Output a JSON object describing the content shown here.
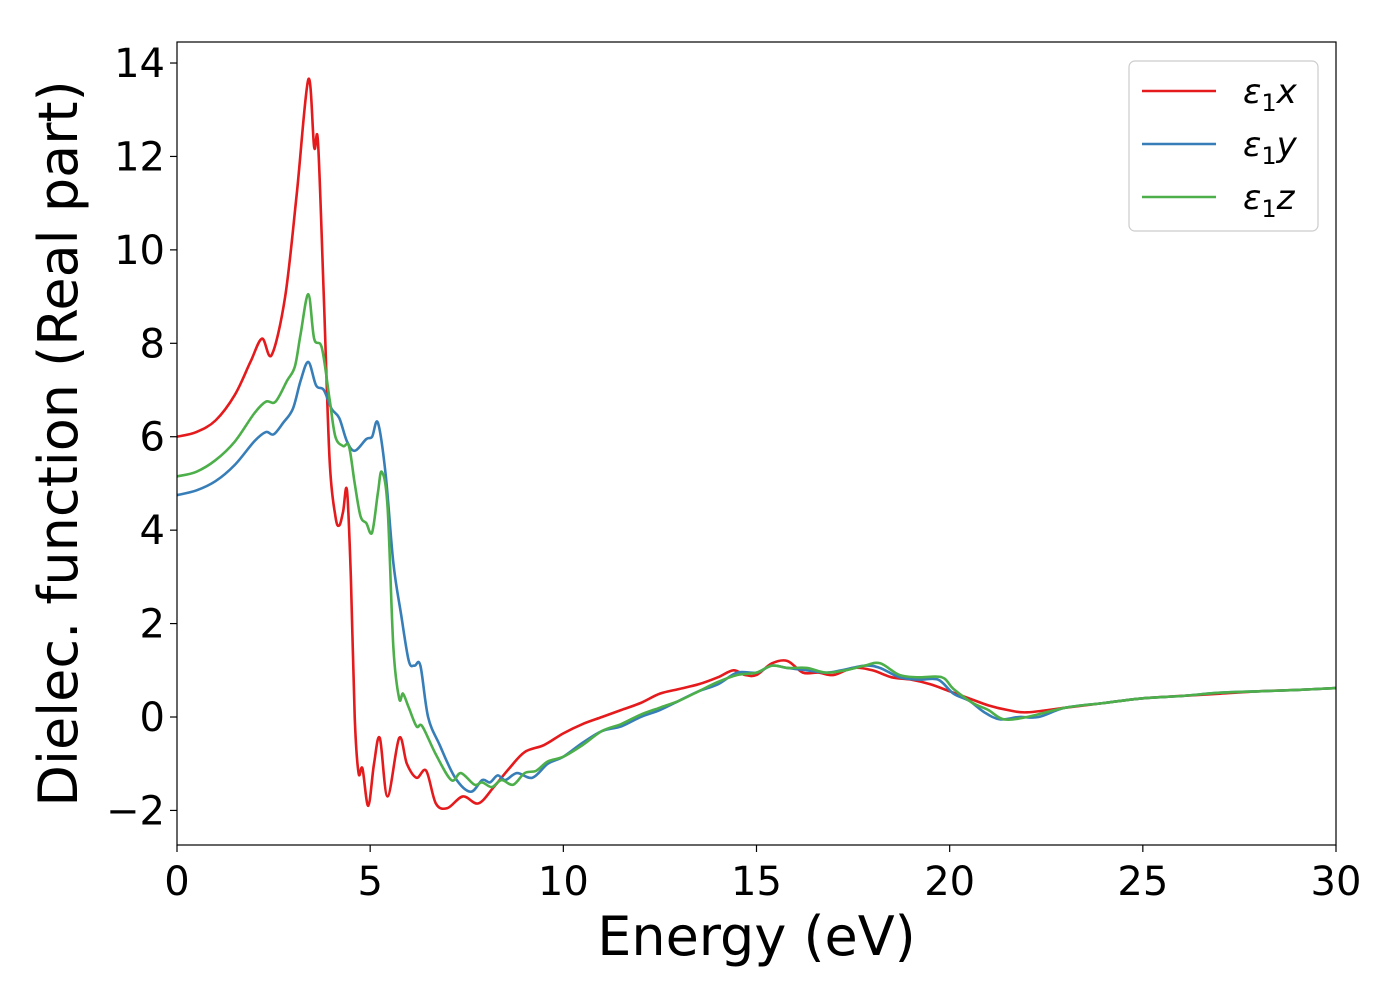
{
  "chart_data": {
    "type": "line",
    "title": "",
    "xlabel": "Energy (eV)",
    "ylabel": "Dielec. function (Real part)",
    "xlim": [
      0,
      30
    ],
    "ylim": [
      -2.74,
      14.45
    ],
    "xticks": [
      0,
      5,
      10,
      15,
      20,
      25,
      30
    ],
    "yticks": [
      -2,
      0,
      2,
      4,
      6,
      8,
      10,
      12,
      14
    ],
    "ytick_labels": [
      "−2",
      "0",
      "2",
      "4",
      "6",
      "8",
      "10",
      "12",
      "14"
    ],
    "grid": false,
    "legend_position": "top-right",
    "series": [
      {
        "name": "ε1x",
        "label_base": "ε",
        "label_sub": "1",
        "label_tail": "x",
        "color": "#e41a1c",
        "x": [
          0,
          0.5,
          1,
          1.5,
          1.9,
          2.2,
          2.45,
          2.8,
          3.1,
          3.4,
          3.55,
          3.65,
          3.8,
          3.95,
          4.1,
          4.2,
          4.3,
          4.4,
          4.5,
          4.6,
          4.7,
          4.8,
          4.95,
          5.1,
          5.25,
          5.45,
          5.75,
          5.95,
          6.2,
          6.45,
          6.7,
          7,
          7.4,
          7.8,
          8.2,
          8.6,
          9,
          9.5,
          10,
          10.5,
          11,
          11.5,
          12,
          12.5,
          13,
          13.5,
          14,
          14.4,
          14.7,
          15,
          15.4,
          15.8,
          16.2,
          16.6,
          17,
          17.5,
          18,
          18.5,
          19,
          19.5,
          20,
          20.5,
          21,
          21.5,
          22,
          23,
          24,
          25,
          26,
          27,
          28,
          29,
          30
        ],
        "y": [
          6.0,
          6.1,
          6.35,
          6.9,
          7.6,
          8.1,
          7.75,
          9.0,
          11.2,
          13.65,
          12.2,
          12.3,
          9.0,
          5.5,
          4.3,
          4.1,
          4.4,
          4.85,
          3.0,
          0.0,
          -1.2,
          -1.1,
          -1.9,
          -1.0,
          -0.45,
          -1.7,
          -0.45,
          -1.0,
          -1.3,
          -1.15,
          -1.85,
          -1.95,
          -1.7,
          -1.85,
          -1.5,
          -1.1,
          -0.75,
          -0.6,
          -0.35,
          -0.15,
          0.0,
          0.15,
          0.3,
          0.5,
          0.6,
          0.7,
          0.85,
          1.0,
          0.9,
          0.9,
          1.15,
          1.2,
          0.95,
          0.95,
          0.9,
          1.05,
          1.0,
          0.85,
          0.8,
          0.7,
          0.55,
          0.4,
          0.25,
          0.15,
          0.1,
          0.2,
          0.3,
          0.4,
          0.45,
          0.5,
          0.55,
          0.58,
          0.62
        ]
      },
      {
        "name": "ε1y",
        "label_base": "ε",
        "label_sub": "1",
        "label_tail": "y",
        "color": "#377eb8",
        "x": [
          0,
          0.5,
          1,
          1.5,
          2,
          2.3,
          2.5,
          2.75,
          3,
          3.2,
          3.4,
          3.6,
          3.8,
          4,
          4.2,
          4.4,
          4.6,
          4.9,
          5.05,
          5.2,
          5.4,
          5.6,
          5.8,
          6,
          6.15,
          6.3,
          6.5,
          6.8,
          7.2,
          7.6,
          7.9,
          8.1,
          8.3,
          8.5,
          8.8,
          9.2,
          9.6,
          10,
          10.5,
          11,
          11.5,
          12,
          12.5,
          13,
          13.5,
          14,
          14.5,
          15,
          15.4,
          15.8,
          16.3,
          16.8,
          17.2,
          17.8,
          18.2,
          18.7,
          19.2,
          19.7,
          20.1,
          20.5,
          20.9,
          21.3,
          21.8,
          22.3,
          23,
          24,
          25,
          26,
          27,
          28,
          29,
          30
        ],
        "y": [
          4.75,
          4.85,
          5.05,
          5.4,
          5.9,
          6.1,
          6.05,
          6.3,
          6.6,
          7.2,
          7.6,
          7.1,
          7.0,
          6.6,
          6.4,
          5.9,
          5.7,
          5.95,
          6.0,
          6.3,
          5.2,
          3.3,
          2.2,
          1.2,
          1.1,
          1.1,
          0.0,
          -0.6,
          -1.3,
          -1.6,
          -1.35,
          -1.4,
          -1.25,
          -1.35,
          -1.2,
          -1.3,
          -1.0,
          -0.85,
          -0.55,
          -0.3,
          -0.2,
          0.0,
          0.15,
          0.35,
          0.55,
          0.7,
          0.95,
          0.95,
          1.1,
          1.05,
          1.0,
          0.95,
          1.0,
          1.1,
          1.05,
          0.85,
          0.8,
          0.8,
          0.5,
          0.35,
          0.1,
          -0.05,
          0.0,
          0.0,
          0.2,
          0.3,
          0.4,
          0.45,
          0.52,
          0.55,
          0.58,
          0.62
        ]
      },
      {
        "name": "ε1z",
        "label_base": "ε",
        "label_sub": "1",
        "label_tail": "z",
        "color": "#4daf4a",
        "x": [
          0,
          0.5,
          1,
          1.5,
          2,
          2.3,
          2.55,
          2.85,
          3.05,
          3.2,
          3.4,
          3.55,
          3.75,
          3.95,
          4.1,
          4.3,
          4.45,
          4.6,
          4.75,
          4.9,
          5.05,
          5.2,
          5.3,
          5.45,
          5.6,
          5.75,
          5.85,
          6,
          6.2,
          6.35,
          6.7,
          7.1,
          7.35,
          7.7,
          7.9,
          8.15,
          8.4,
          8.7,
          9,
          9.3,
          9.6,
          10,
          10.5,
          11,
          11.5,
          12,
          12.5,
          13,
          13.5,
          14,
          14.5,
          15,
          15.4,
          15.8,
          16.3,
          16.8,
          17.3,
          17.8,
          18.2,
          18.7,
          19.2,
          19.8,
          20.1,
          20.6,
          21,
          21.4,
          22,
          23,
          24,
          25,
          26,
          27,
          28,
          29,
          30
        ],
        "y": [
          5.15,
          5.25,
          5.5,
          5.9,
          6.5,
          6.75,
          6.75,
          7.2,
          7.5,
          8.2,
          9.05,
          8.1,
          7.9,
          6.8,
          6.0,
          5.8,
          5.8,
          5.0,
          4.3,
          4.15,
          3.95,
          4.8,
          5.25,
          4.5,
          1.5,
          0.4,
          0.5,
          0.2,
          -0.2,
          -0.2,
          -0.8,
          -1.35,
          -1.2,
          -1.45,
          -1.4,
          -1.5,
          -1.35,
          -1.45,
          -1.2,
          -1.15,
          -0.95,
          -0.85,
          -0.6,
          -0.3,
          -0.15,
          0.05,
          0.2,
          0.35,
          0.55,
          0.75,
          0.9,
          0.95,
          1.1,
          1.05,
          1.05,
          0.95,
          1.0,
          1.1,
          1.15,
          0.9,
          0.85,
          0.85,
          0.6,
          0.3,
          0.15,
          -0.05,
          0.0,
          0.2,
          0.3,
          0.4,
          0.45,
          0.52,
          0.55,
          0.58,
          0.62
        ]
      }
    ]
  }
}
